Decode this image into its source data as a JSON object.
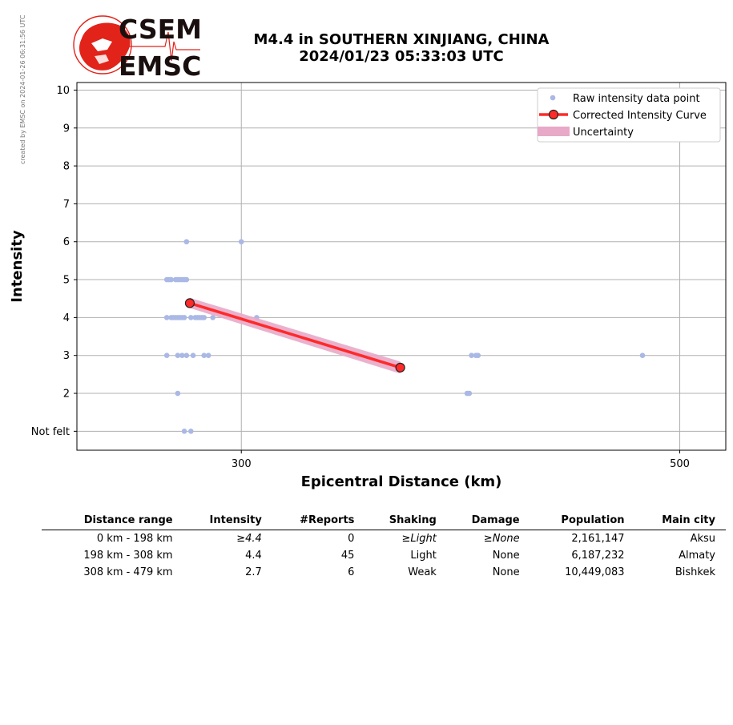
{
  "side_note": "created by EMSC on 2024-01-26 06:31:56 UTC",
  "logo": {
    "text_top": "CSEM",
    "text_bottom": "EMSC",
    "color": "#e2231a"
  },
  "header": {
    "title_line1": "M4.4 in SOUTHERN XINJIANG, CHINA",
    "title_line2": "2024/01/23 05:33:03 UTC"
  },
  "colors": {
    "raw": "#aab8e6",
    "curve": "#ff2a2a",
    "uncertainty": "#e8a8c8",
    "grid": "#b0b0b0"
  },
  "chart_data": {
    "type": "scatter",
    "xlabel": "Epicentral Distance (km)",
    "ylabel": "Intensity",
    "xlim": [
      225,
      521
    ],
    "ylim": [
      0.5,
      10.2
    ],
    "x_ticks": [
      300,
      500
    ],
    "y_ticks": [
      {
        "value": 1,
        "label": "Not felt"
      },
      {
        "value": 2,
        "label": "2"
      },
      {
        "value": 3,
        "label": "3"
      },
      {
        "value": 4,
        "label": "4"
      },
      {
        "value": 5,
        "label": "5"
      },
      {
        "value": 6,
        "label": "6"
      },
      {
        "value": 7,
        "label": "7"
      },
      {
        "value": 8,
        "label": "8"
      },
      {
        "value": 9,
        "label": "9"
      },
      {
        "value": 10,
        "label": "10"
      }
    ],
    "grid": true,
    "legend_position": "top-right",
    "legend": [
      "Raw intensity data point",
      "Corrected Intensity Curve",
      "Uncertainty"
    ],
    "raw_points": [
      [
        275,
        6
      ],
      [
        300,
        6
      ],
      [
        266,
        5
      ],
      [
        267,
        5
      ],
      [
        268,
        5
      ],
      [
        270,
        5
      ],
      [
        271,
        5
      ],
      [
        272,
        5
      ],
      [
        273,
        5
      ],
      [
        274,
        5
      ],
      [
        275,
        5
      ],
      [
        266,
        4
      ],
      [
        268,
        4
      ],
      [
        269,
        4
      ],
      [
        270,
        4
      ],
      [
        271,
        4
      ],
      [
        272,
        4
      ],
      [
        273,
        4
      ],
      [
        274,
        4
      ],
      [
        277,
        4
      ],
      [
        279,
        4
      ],
      [
        280,
        4
      ],
      [
        281,
        4
      ],
      [
        282,
        4
      ],
      [
        283,
        4
      ],
      [
        287,
        4
      ],
      [
        307,
        4
      ],
      [
        266,
        3
      ],
      [
        271,
        3
      ],
      [
        273,
        3
      ],
      [
        275,
        3
      ],
      [
        278,
        3
      ],
      [
        283,
        3
      ],
      [
        285,
        3
      ],
      [
        353,
        3
      ],
      [
        405,
        3
      ],
      [
        407,
        3
      ],
      [
        408,
        3
      ],
      [
        483,
        3
      ],
      [
        271,
        2
      ],
      [
        403,
        2
      ],
      [
        404,
        2
      ],
      [
        274,
        1
      ],
      [
        277,
        1
      ]
    ],
    "corrected_curve": {
      "x": [
        276.5,
        372.5
      ],
      "y": [
        4.38,
        2.68
      ]
    },
    "uncertainty": {
      "x": [
        276.5,
        372.5
      ],
      "lower": [
        4.25,
        2.52
      ],
      "upper": [
        4.52,
        2.84
      ]
    }
  },
  "table": {
    "headers": [
      "Distance range",
      "Intensity",
      "#Reports",
      "Shaking",
      "Damage",
      "Population",
      "Main city"
    ],
    "rows": [
      {
        "range": "0 km -  198 km",
        "intensity": "≥4.4",
        "reports": "0",
        "shaking": "≥Light",
        "damage": "≥None",
        "population": "2,161,147",
        "city": "Aksu",
        "italic": true
      },
      {
        "range": "198 km -  308 km",
        "intensity": "4.4",
        "reports": "45",
        "shaking": "Light",
        "damage": "None",
        "population": "6,187,232",
        "city": "Almaty",
        "italic": false
      },
      {
        "range": "308 km -  479 km",
        "intensity": "2.7",
        "reports": "6",
        "shaking": "Weak",
        "damage": "None",
        "population": "10,449,083",
        "city": "Bishkek",
        "italic": false
      }
    ]
  }
}
